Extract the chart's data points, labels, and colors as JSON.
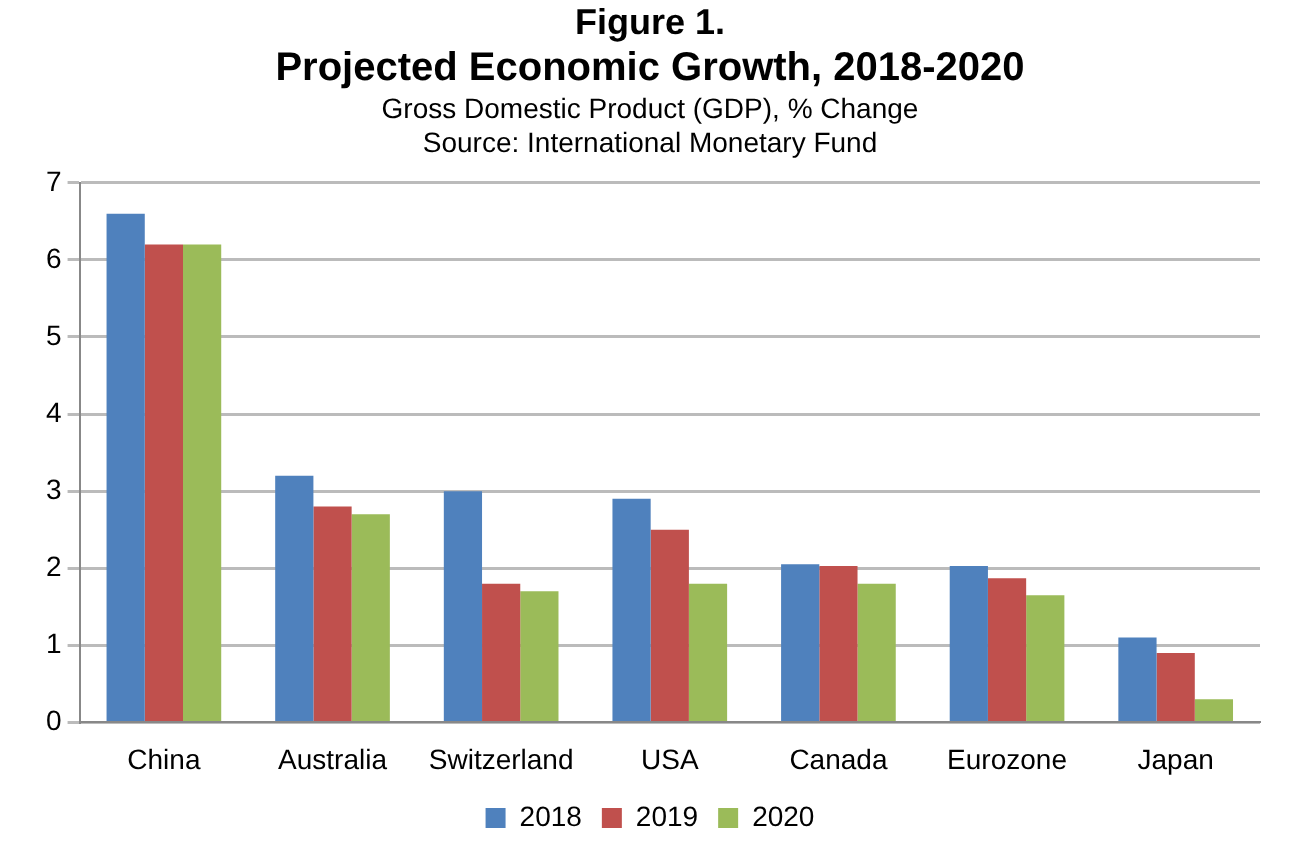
{
  "chart_data": {
    "type": "bar",
    "title": "Projected Economic Growth, 2018-2020",
    "subtitle": "Gross Domestic Product (GDP), % Change",
    "annotations": [
      "Figure 1.",
      "Source:  International Monetary Fund"
    ],
    "categories": [
      "China",
      "Australia",
      "Switzerland",
      "USA",
      "Canada",
      "Eurozone",
      "Japan"
    ],
    "series": [
      {
        "name": "2018",
        "color": "#4f81bd",
        "values": [
          6.6,
          3.2,
          3.0,
          2.9,
          2.05,
          2.03,
          1.1
        ]
      },
      {
        "name": "2019",
        "color": "#c0504d",
        "values": [
          6.2,
          2.8,
          1.8,
          2.5,
          2.03,
          1.87,
          0.9
        ]
      },
      {
        "name": "2020",
        "color": "#9bbb59",
        "values": [
          6.2,
          2.7,
          1.7,
          1.8,
          1.8,
          1.65,
          0.3
        ]
      }
    ],
    "ylim": [
      0,
      7
    ],
    "yticks": [
      0,
      1,
      2,
      3,
      4,
      5,
      6,
      7
    ],
    "grid": "y",
    "legend": "bottom"
  }
}
